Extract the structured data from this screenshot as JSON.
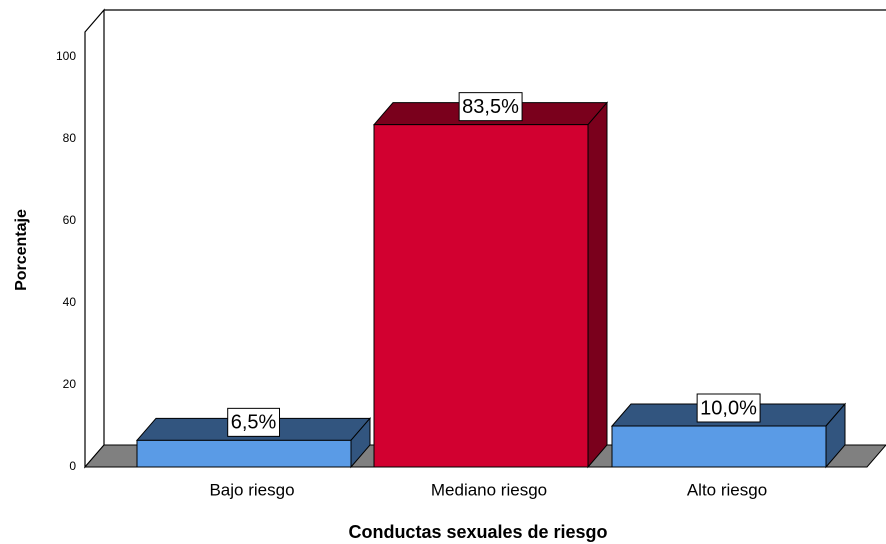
{
  "chart_data": {
    "type": "bar3d",
    "categories": [
      "Bajo riesgo",
      "Mediano riesgo",
      "Alto riesgo"
    ],
    "values": [
      6.5,
      83.5,
      10.0
    ],
    "value_labels": [
      "6,5%",
      "83,5%",
      "10,0%"
    ],
    "colors": [
      "#5a9be6",
      "#d20030",
      "#5a9be6"
    ],
    "x_label": "Conductas sexuales  de riesgo",
    "y_label": "Porcentaje",
    "ylim": [
      0,
      100
    ],
    "yticks": [
      0,
      20,
      40,
      60,
      80,
      100
    ],
    "grid": false
  }
}
